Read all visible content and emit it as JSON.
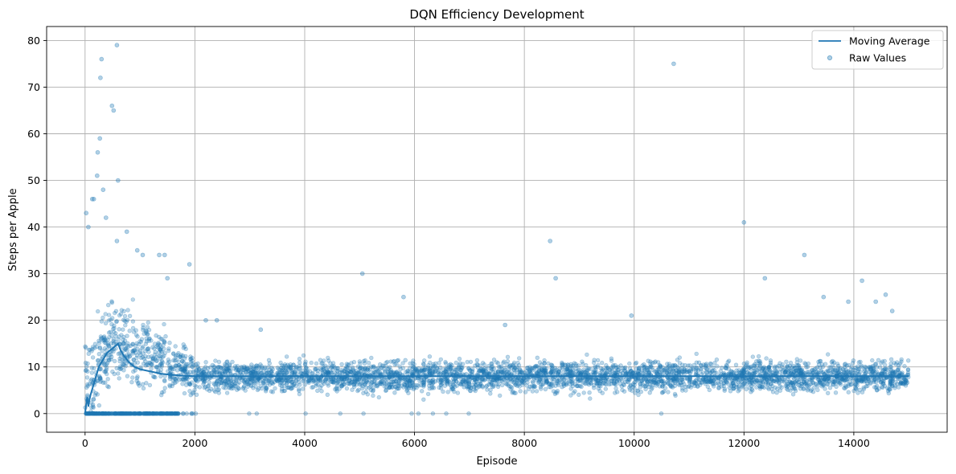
{
  "chart_data": {
    "type": "scatter",
    "title": "DQN Efficiency Development",
    "xlabel": "Episode",
    "ylabel": "Steps per Apple",
    "xlim": [
      -700,
      15700
    ],
    "ylim": [
      -4,
      83
    ],
    "xticks": [
      0,
      2000,
      4000,
      6000,
      8000,
      10000,
      12000,
      14000
    ],
    "yticks": [
      0,
      10,
      20,
      30,
      40,
      50,
      60,
      70,
      80
    ],
    "grid": true,
    "legend_position": "top-right",
    "colors": {
      "series": "#1f77b4",
      "grid": "#b0b0b0"
    },
    "series": [
      {
        "name": "Moving Average",
        "kind": "line",
        "x": [
          0,
          20,
          40,
          60,
          80,
          100,
          150,
          200,
          250,
          300,
          350,
          400,
          450,
          500,
          550,
          600,
          650,
          700,
          800,
          900,
          1000,
          1200,
          1400,
          1600,
          1800,
          2000,
          3000,
          4000,
          5000,
          6000,
          7000,
          8000,
          9000,
          10000,
          11000,
          12000,
          13000,
          14000,
          15000
        ],
        "y": [
          0,
          2,
          3.5,
          1.5,
          3,
          4,
          6,
          8,
          10,
          11,
          12,
          13,
          13.5,
          14,
          14.5,
          15,
          13.5,
          12.5,
          11,
          10,
          9.5,
          9,
          8.5,
          8.3,
          8.1,
          8,
          8,
          8,
          8,
          8,
          8,
          8,
          8,
          8,
          8,
          8,
          8,
          8,
          8
        ]
      },
      {
        "name": "Raw Values",
        "kind": "scatter",
        "note_points": "outliers read from chart",
        "x": [
          300,
          280,
          580,
          490,
          520,
          10720,
          230,
          270,
          330,
          160,
          220,
          600,
          130,
          60,
          20,
          12000,
          380,
          1900,
          5050,
          8470,
          8570,
          13100,
          12380,
          14150,
          14580,
          5800,
          580,
          1350,
          1450,
          760,
          950,
          1050,
          1500,
          2200,
          2400,
          3200,
          13450,
          13900,
          14400,
          14700,
          9950,
          7650
        ],
        "y": [
          76,
          72,
          79,
          66,
          65,
          75,
          56,
          59,
          48,
          46,
          51,
          50,
          46,
          40,
          43,
          41,
          42,
          32,
          30,
          37,
          29,
          34,
          29,
          28.5,
          25.5,
          25,
          37,
          34,
          34,
          39,
          35,
          34,
          29,
          20,
          20,
          18,
          25,
          24,
          24,
          22,
          21,
          19
        ]
      }
    ]
  }
}
